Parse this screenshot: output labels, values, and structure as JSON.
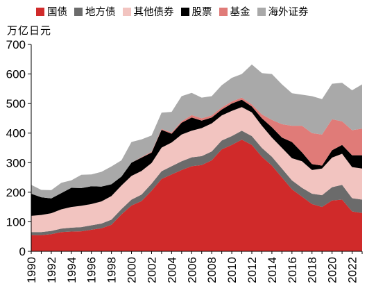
{
  "chart_data": {
    "type": "area",
    "stacked": true,
    "ylabel": "万亿日元",
    "ylim": [
      0,
      700
    ],
    "yticks": [
      0,
      100,
      200,
      300,
      400,
      500,
      600,
      700
    ],
    "xlim": [
      1990,
      2023
    ],
    "xticks": [
      1990,
      1992,
      1994,
      1996,
      1998,
      2000,
      2002,
      2004,
      2006,
      2008,
      2010,
      2012,
      2014,
      2016,
      2018,
      2020,
      2022
    ],
    "legend_position": "top",
    "grid": false,
    "x": [
      1990,
      1991,
      1992,
      1993,
      1994,
      1995,
      1996,
      1997,
      1998,
      1999,
      2000,
      2001,
      2002,
      2003,
      2004,
      2005,
      2006,
      2007,
      2008,
      2009,
      2010,
      2011,
      2012,
      2013,
      2014,
      2015,
      2016,
      2017,
      2018,
      2019,
      2020,
      2021,
      2022,
      2023
    ],
    "series": [
      {
        "name": "国债",
        "color": "#d02a2a",
        "values": [
          55,
          55,
          58,
          65,
          67,
          68,
          73,
          78,
          90,
          125,
          155,
          170,
          205,
          245,
          260,
          275,
          288,
          292,
          308,
          345,
          360,
          378,
          360,
          320,
          290,
          250,
          210,
          185,
          160,
          150,
          172,
          175,
          135,
          130
        ]
      },
      {
        "name": "地方债",
        "color": "#6b6b6b",
        "values": [
          10,
          10,
          11,
          12,
          13,
          14,
          15,
          16,
          17,
          18,
          20,
          22,
          24,
          26,
          28,
          30,
          30,
          30,
          30,
          30,
          30,
          30,
          30,
          30,
          30,
          30,
          30,
          30,
          35,
          40,
          45,
          50,
          45,
          45
        ]
      },
      {
        "name": "其他债券",
        "color": "#f2c4c0",
        "values": [
          55,
          58,
          60,
          65,
          70,
          72,
          72,
          75,
          80,
          80,
          80,
          80,
          70,
          80,
          80,
          90,
          90,
          95,
          95,
          85,
          85,
          80,
          80,
          75,
          65,
          70,
          75,
          90,
          80,
          90,
          100,
          105,
          105,
          105
        ]
      },
      {
        "name": "股票",
        "color": "#000000",
        "values": [
          75,
          60,
          50,
          55,
          65,
          60,
          60,
          50,
          40,
          30,
          45,
          45,
          35,
          60,
          30,
          40,
          45,
          25,
          20,
          20,
          25,
          25,
          20,
          25,
          35,
          35,
          55,
          30,
          20,
          10,
          25,
          30,
          40,
          45
        ]
      },
      {
        "name": "基金",
        "color": "#e07b78",
        "values": [
          0,
          0,
          0,
          0,
          0,
          0,
          0,
          0,
          0,
          0,
          0,
          2,
          3,
          3,
          4,
          5,
          8,
          8,
          7,
          7,
          7,
          7,
          7,
          13,
          25,
          45,
          55,
          90,
          105,
          105,
          105,
          80,
          85,
          90
        ]
      },
      {
        "name": "海外证券",
        "color": "#a9a9a9",
        "values": [
          30,
          25,
          28,
          35,
          25,
          45,
          40,
          50,
          60,
          55,
          70,
          60,
          55,
          55,
          70,
          85,
          75,
          70,
          65,
          75,
          80,
          80,
          135,
          140,
          155,
          135,
          110,
          105,
          125,
          120,
          120,
          130,
          135,
          150
        ]
      }
    ]
  }
}
